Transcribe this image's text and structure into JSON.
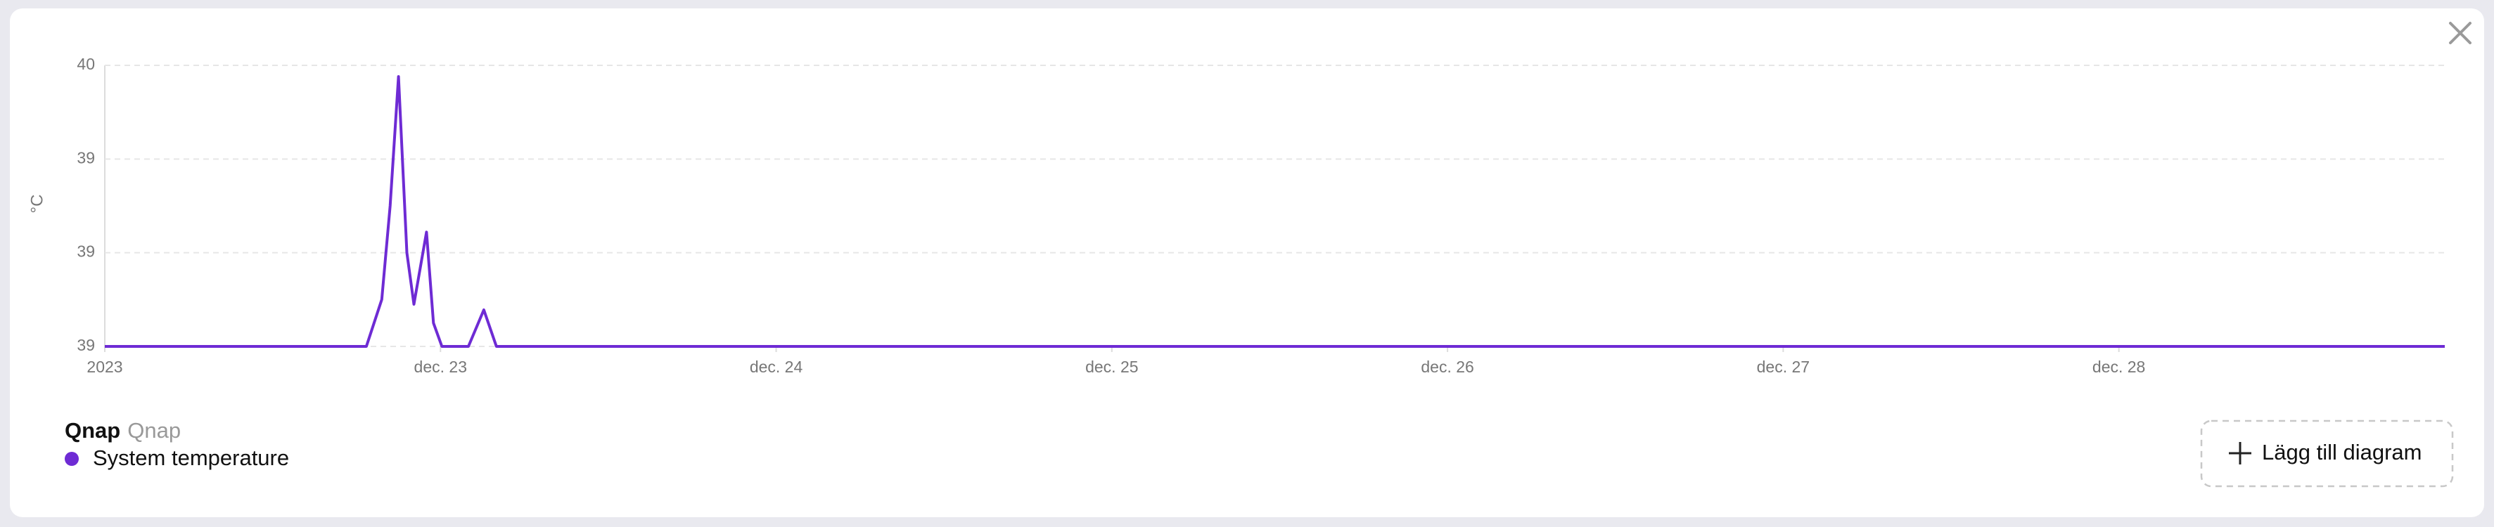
{
  "chart_data": {
    "type": "line",
    "y_label": "°C",
    "x": [
      0,
      18.7,
      19.8,
      20.4,
      21.0,
      21.6,
      22.1,
      23.0,
      23.5,
      24.1,
      26.0,
      27.1,
      28.0,
      167.3
    ],
    "series": [
      {
        "name": "System temperature",
        "color": "#6e2bd4",
        "values": [
          39.0,
          39.0,
          39.1,
          39.3,
          39.576,
          39.2,
          39.09,
          39.244,
          39.05,
          39.0,
          39.0,
          39.078,
          39.0,
          39.0
        ]
      }
    ],
    "xlim": [
      0,
      167.3
    ],
    "xticks": [
      {
        "value": 0,
        "label": "2023"
      },
      {
        "value": 24,
        "label": "dec. 23"
      },
      {
        "value": 48,
        "label": "dec. 24"
      },
      {
        "value": 72,
        "label": "dec. 25"
      },
      {
        "value": 96,
        "label": "dec. 26"
      },
      {
        "value": 120,
        "label": "dec. 27"
      },
      {
        "value": 144,
        "label": "dec. 28"
      }
    ],
    "ylim": [
      39.0,
      39.6
    ],
    "yticks": [
      {
        "value": 39.0,
        "label": "39"
      },
      {
        "value": 39.2,
        "label": "39"
      },
      {
        "value": 39.4,
        "label": "39"
      },
      {
        "value": 39.6,
        "label": "40"
      }
    ],
    "grid": true,
    "legend_device": "Qnap",
    "legend_area": "Qnap"
  },
  "button": "Lägg till diagram"
}
